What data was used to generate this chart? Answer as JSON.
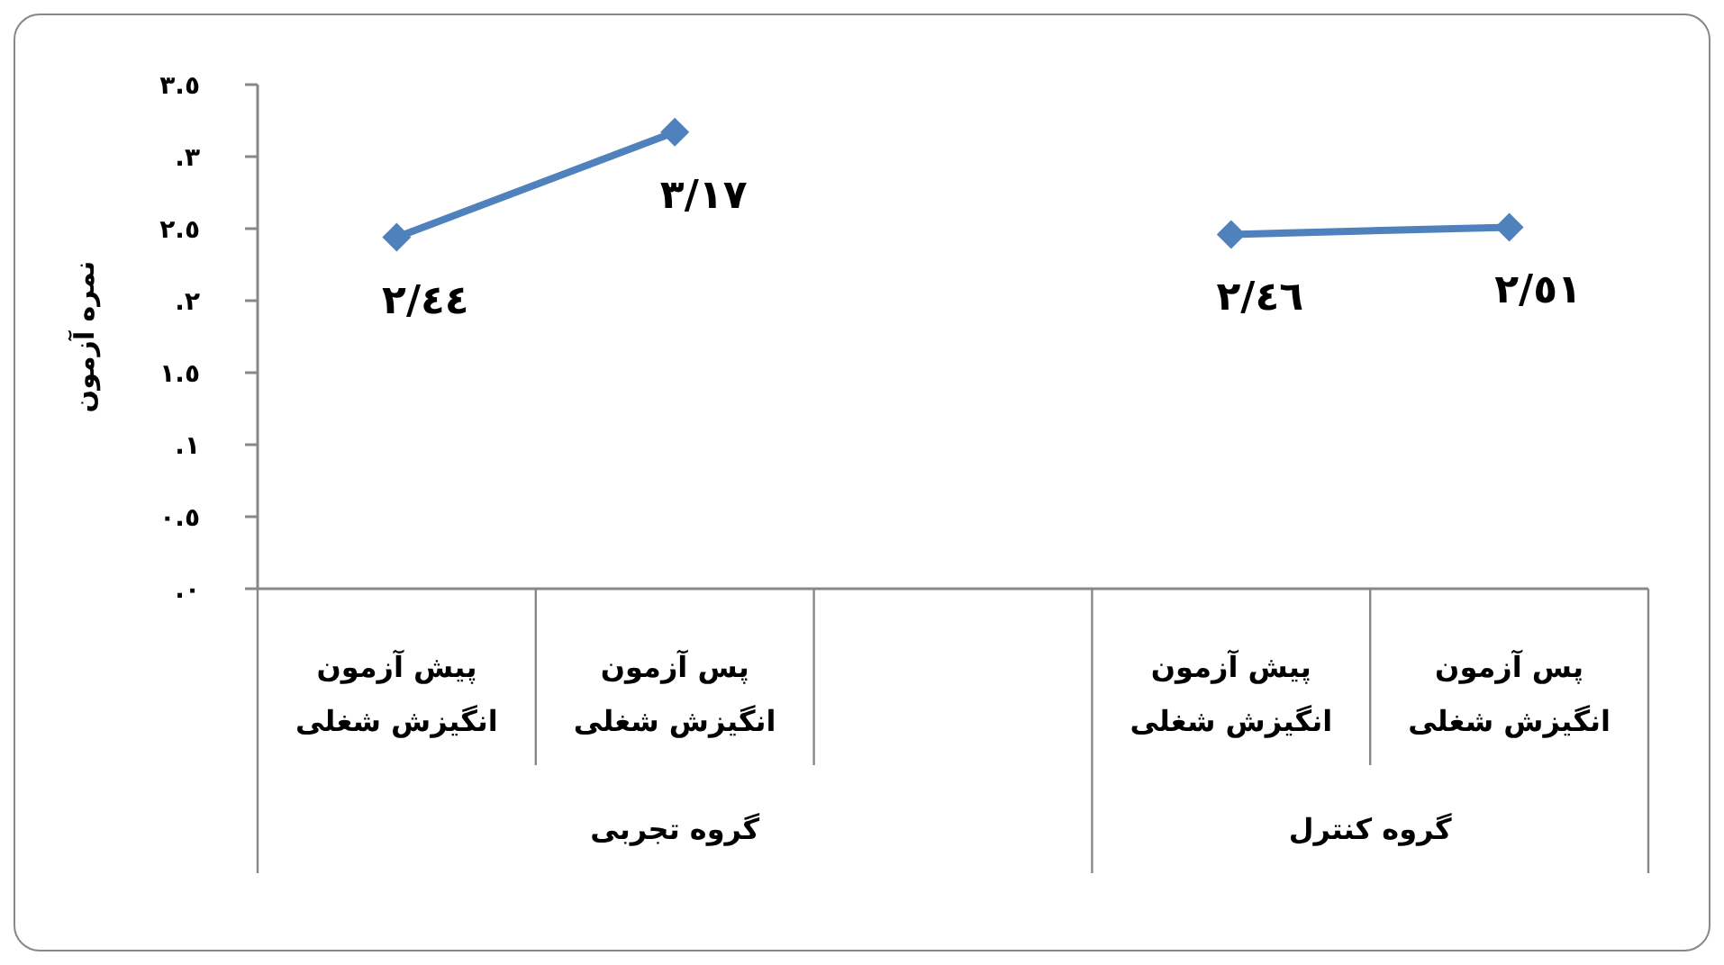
{
  "chart_data": {
    "type": "line",
    "ylabel": "نمره آزمون",
    "categories": [
      "پیش آزمون\nانگیزش شغلی",
      "پس آزمون\nانگیزش شغلی",
      null,
      "پیش آزمون\nانگیزش  شغلی",
      "پس آزمون\nانگیزش شغلی"
    ],
    "series": [
      {
        "color": "#4f81bd",
        "values": [
          2.44,
          3.17,
          null,
          2.46,
          2.51
        ],
        "value_labels": [
          "٢/٤٤",
          "٣/١٧",
          null,
          "٢/٤٦",
          "٢/٥١"
        ]
      }
    ],
    "ylim": [
      0,
      3.5
    ],
    "yticks": [
      {
        "value": 0,
        "label": "٠."
      },
      {
        "value": 0.5,
        "label": "٠.٥"
      },
      {
        "value": 1,
        "label": "١."
      },
      {
        "value": 1.5,
        "label": "١.٥"
      },
      {
        "value": 2,
        "label": "٢."
      },
      {
        "value": 2.5,
        "label": "٢.٥"
      },
      {
        "value": 3,
        "label": "٣."
      },
      {
        "value": 3.5,
        "label": "٣.٥"
      }
    ],
    "marker": "diamond",
    "line_style": "solid",
    "grid": false,
    "annotations": [
      "گروه تجربی",
      "گروه کنترل"
    ]
  }
}
